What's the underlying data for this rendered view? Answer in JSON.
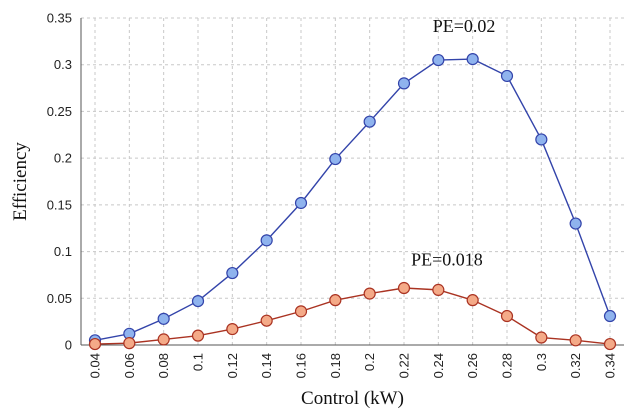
{
  "chart_data": {
    "type": "line",
    "xlabel": "Control (kW)",
    "ylabel": "Efficiency",
    "x": [
      0.04,
      0.06,
      0.08,
      0.1,
      0.12,
      0.14,
      0.16,
      0.18,
      0.2,
      0.22,
      0.24,
      0.26,
      0.28,
      0.3,
      0.32,
      0.34
    ],
    "x_tick_labels": [
      "0.04",
      "0.06",
      "0.08",
      "0.1",
      "0.12",
      "0.14",
      "0.16",
      "0.18",
      "0.2",
      "0.22",
      "0.24",
      "0.26",
      "0.28",
      "0.3",
      "0.32",
      "0.34"
    ],
    "xlim": [
      0.04,
      0.34
    ],
    "ylim": [
      0,
      0.35
    ],
    "y_ticks": [
      0,
      0.05,
      0.1,
      0.15,
      0.2,
      0.25,
      0.3,
      0.35
    ],
    "y_tick_labels": [
      "0",
      "0.05",
      "0.1",
      "0.15",
      "0.2",
      "0.25",
      "0.3",
      "0.35"
    ],
    "grid": true,
    "series": [
      {
        "values": [
          0.005,
          0.012,
          0.028,
          0.047,
          0.077,
          0.112,
          0.152,
          0.199,
          0.239,
          0.28,
          0.305,
          0.306,
          0.288,
          0.22,
          0.13,
          0.031
        ],
        "line_color": "#3344aa",
        "marker_color": "#8fb3ee"
      },
      {
        "values": [
          0.001,
          0.002,
          0.006,
          0.01,
          0.017,
          0.026,
          0.036,
          0.048,
          0.055,
          0.061,
          0.059,
          0.048,
          0.031,
          0.008,
          0.005,
          0.001
        ],
        "line_color": "#aa3322",
        "marker_color": "#f4aa88"
      }
    ],
    "annotations": [
      {
        "text": "PE=0.02",
        "x": 0.255,
        "y": 0.335
      },
      {
        "text": "PE=0.018",
        "x": 0.245,
        "y": 0.085
      }
    ]
  }
}
